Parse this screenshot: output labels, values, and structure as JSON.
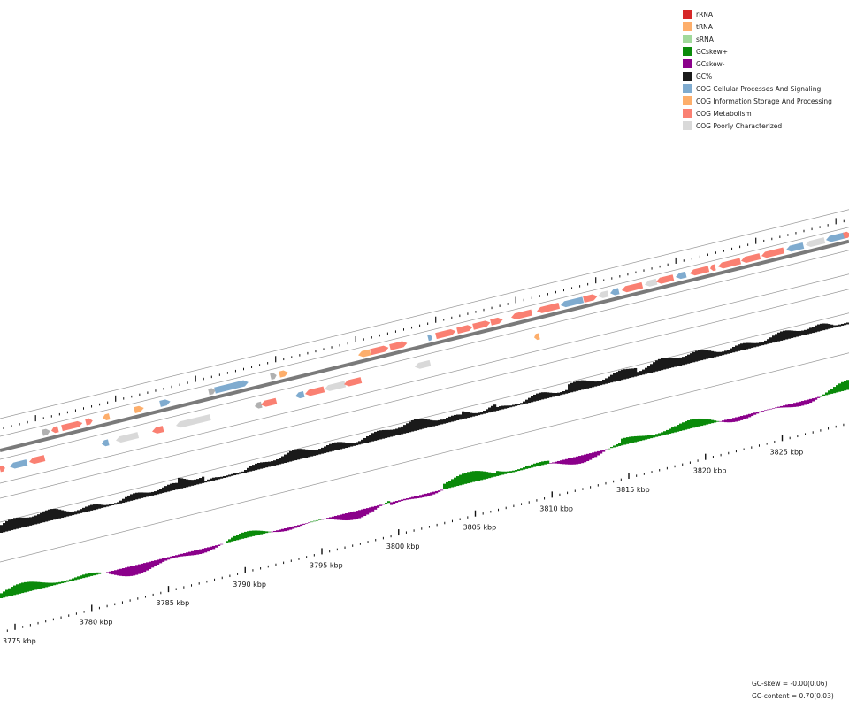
{
  "legend": [
    {
      "label": "rRNA",
      "color": "#d62728"
    },
    {
      "label": "tRNA",
      "color": "#fdae6b"
    },
    {
      "label": "sRNA",
      "color": "#a1d99b"
    },
    {
      "label": "GCskew+",
      "color": "#0a8a0a"
    },
    {
      "label": "GCskew-",
      "color": "#8b008b"
    },
    {
      "label": "GC%",
      "color": "#1a1a1a"
    },
    {
      "label": "COG Cellular Processes And Signaling",
      "color": "#7fabcf"
    },
    {
      "label": "COG Information Storage And Processing",
      "color": "#fdae6b"
    },
    {
      "label": "COG Metabolism",
      "color": "#fa8072"
    },
    {
      "label": "COG Poorly Characterized",
      "color": "#d9d9d9"
    }
  ],
  "stats": {
    "gc_skew": "GC-skew = -0.00(0.06)",
    "gc_content": "GC-content = 0.70(0.03)"
  },
  "axis": {
    "unit": "kbp",
    "labels": [
      "3775 kbp",
      "3780 kbp",
      "3785 kbp",
      "3790 kbp",
      "3795 kbp",
      "3800 kbp",
      "3805 kbp",
      "3810 kbp",
      "3815 kbp",
      "3820 kbp",
      "3825 kbp"
    ],
    "positions_kbp": [
      3775,
      3780,
      3785,
      3790,
      3795,
      3800,
      3805,
      3810,
      3815,
      3820,
      3825
    ]
  },
  "colors": {
    "backbone": "#7a7a7a",
    "track_line": "#9a9a9a",
    "gc_content": "#1a1a1a",
    "skew_pos": "#0a8a0a",
    "skew_neg": "#8b008b"
  }
}
